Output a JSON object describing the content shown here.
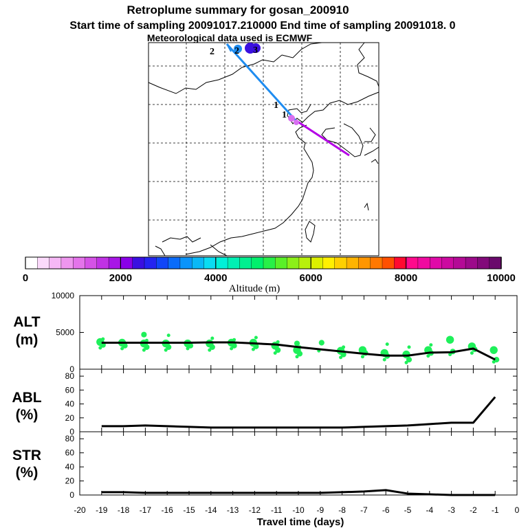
{
  "header": {
    "title": "Retroplume summary for gosan_200910",
    "line2": "Start time of sampling 20091017.210000     End time of sampling 20091018.     0",
    "line3": "Meteorological data used is ECMWF"
  },
  "map": {
    "labels": [
      "2",
      "2",
      "3",
      "1",
      "1"
    ],
    "trajectory_colors": {
      "blue": "#1e8cf0",
      "purple": "#b400e6",
      "magenta": "#d870f0",
      "indigo": "#3a10e0"
    }
  },
  "colorbar": {
    "colors": [
      "#ffffff",
      "#fbdafb",
      "#f5b8f5",
      "#ee96ee",
      "#e474ea",
      "#d552e6",
      "#c032e4",
      "#a816e6",
      "#8a00e8",
      "#3a10e0",
      "#2424f0",
      "#1046f8",
      "#0a6cfa",
      "#0a94fa",
      "#0ab8f6",
      "#0adcf2",
      "#00f0d8",
      "#00f0b4",
      "#00f090",
      "#00f06c",
      "#28f048",
      "#5af028",
      "#8cf018",
      "#b8f00c",
      "#dcf000",
      "#fff000",
      "#ffd000",
      "#ffb400",
      "#ff9600",
      "#ff7800",
      "#ff5000",
      "#ff0a30",
      "#ff0a8c",
      "#f00aa0",
      "#e00aa8",
      "#cc0aa0",
      "#b40a96",
      "#9c0a8a",
      "#820a7a",
      "#6a0a6c"
    ],
    "major_ticks": [
      "0",
      "2000",
      "4000",
      "6000",
      "8000",
      "10000"
    ],
    "xlabel": "Altitude (m)"
  },
  "chart_data": [
    {
      "type": "line",
      "name": "ALT",
      "ylabel": "ALT",
      "ylabel_unit": "(m)",
      "ylim": [
        0,
        10000
      ],
      "yticks": [
        "10000",
        "5000",
        "0"
      ],
      "x": [
        -19,
        -18,
        -17,
        -16,
        -15,
        -14,
        -13,
        -12,
        -11,
        -10,
        -9,
        -8,
        -7,
        -6,
        -5,
        -4,
        -3,
        -2,
        -1
      ],
      "values": [
        3600,
        3600,
        3600,
        3600,
        3600,
        3650,
        3650,
        3500,
        3350,
        3000,
        2700,
        2400,
        2100,
        1850,
        1850,
        2250,
        2300,
        2800,
        1300
      ],
      "scatter_color": "#1ef05a",
      "scatter_groups": [
        {
          "x": -19,
          "y": [
            2900,
            3300,
            3700,
            4100
          ]
        },
        {
          "x": -18,
          "y": [
            2800,
            3200,
            3600
          ]
        },
        {
          "x": -17,
          "y": [
            2600,
            3000,
            3500,
            3900,
            4700
          ]
        },
        {
          "x": -16,
          "y": [
            2600,
            3000,
            3500,
            4600
          ]
        },
        {
          "x": -15,
          "y": [
            2800,
            3200,
            3500
          ]
        },
        {
          "x": -14,
          "y": [
            2600,
            3000,
            3500,
            4200
          ]
        },
        {
          "x": -13,
          "y": [
            2800,
            3200,
            3600,
            4000
          ]
        },
        {
          "x": -12,
          "y": [
            2700,
            3100,
            3600,
            4300
          ]
        },
        {
          "x": -11,
          "y": [
            2200,
            2600,
            3200,
            3700
          ]
        },
        {
          "x": -10,
          "y": [
            1700,
            2100,
            2600,
            3000,
            3500
          ]
        },
        {
          "x": -9,
          "y": [
            2500,
            3600
          ]
        },
        {
          "x": -8,
          "y": [
            1600,
            2000,
            2500,
            3000
          ]
        },
        {
          "x": -7,
          "y": [
            1700,
            2200,
            2600
          ]
        },
        {
          "x": -6,
          "y": [
            1300,
            1800,
            2200,
            3400
          ]
        },
        {
          "x": -5,
          "y": [
            900,
            1300,
            2000,
            3000
          ]
        },
        {
          "x": -4,
          "y": [
            1800,
            2200,
            2600,
            3300
          ]
        },
        {
          "x": -3,
          "y": [
            2000,
            2400,
            4000
          ]
        },
        {
          "x": -2,
          "y": [
            2200,
            2700,
            3100
          ]
        },
        {
          "x": -1,
          "y": [
            1000,
            1300,
            2600
          ]
        }
      ]
    },
    {
      "type": "line",
      "name": "ABL",
      "ylabel": "ABL",
      "ylabel_unit": "(%)",
      "ylim": [
        0,
        90
      ],
      "yticks": [
        "80",
        "60",
        "40",
        "20",
        "0"
      ],
      "x": [
        -19,
        -18,
        -17,
        -16,
        -15,
        -14,
        -13,
        -12,
        -11,
        -10,
        -9,
        -8,
        -7,
        -6,
        -5,
        -4,
        -3,
        -2,
        -1
      ],
      "values": [
        8,
        8,
        9,
        8,
        7,
        6,
        6,
        6,
        6,
        6,
        6,
        6,
        7,
        8,
        9,
        11,
        13,
        13,
        50
      ]
    },
    {
      "type": "line",
      "name": "STR",
      "ylabel": "STR",
      "ylabel_unit": "(%)",
      "ylim": [
        0,
        90
      ],
      "yticks": [
        "80",
        "60",
        "40",
        "20",
        "0"
      ],
      "x": [
        -19,
        -18,
        -17,
        -16,
        -15,
        -14,
        -13,
        -12,
        -11,
        -10,
        -9,
        -8,
        -7,
        -6,
        -5,
        -4,
        -3,
        -2,
        -1
      ],
      "values": [
        4,
        4,
        3,
        3,
        3,
        3,
        3,
        3,
        3,
        3,
        3,
        4,
        5,
        7,
        2,
        1,
        0,
        0,
        0
      ],
      "xticks": [
        "-20",
        "-19",
        "-18",
        "-17",
        "-16",
        "-15",
        "-14",
        "-13",
        "-12",
        "-11",
        "-10",
        "-9",
        "-8",
        "-7",
        "-6",
        "-5",
        "-4",
        "-3",
        "-2",
        "-1",
        "0"
      ],
      "xlabel": "Travel time (days)"
    }
  ]
}
